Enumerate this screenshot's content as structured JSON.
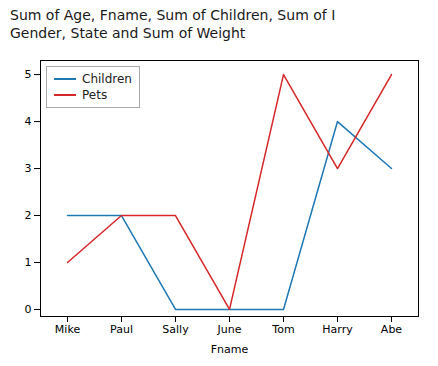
{
  "chart_data": {
    "type": "line",
    "title": "Sum of Age, Fname, Sum of Children, Sum of I",
    "subtitle": "Gender, State and Sum of Weight",
    "xlabel": "Fname",
    "categories": [
      "Mike",
      "Paul",
      "Sally",
      "June",
      "Tom",
      "Harry",
      "Abe"
    ],
    "series": [
      {
        "name": "Children",
        "color": "#1f77b4",
        "values": [
          2,
          2,
          0,
          0,
          0,
          4,
          3
        ]
      },
      {
        "name": "Pets",
        "color": "#d62728",
        "values": [
          1,
          2,
          2,
          0,
          5,
          3,
          5
        ]
      }
    ],
    "ylim": [
      -0.15,
      5.3
    ],
    "yticks": [
      0,
      1,
      2,
      3,
      4,
      5
    ],
    "legend": "upper left",
    "grid": false
  }
}
